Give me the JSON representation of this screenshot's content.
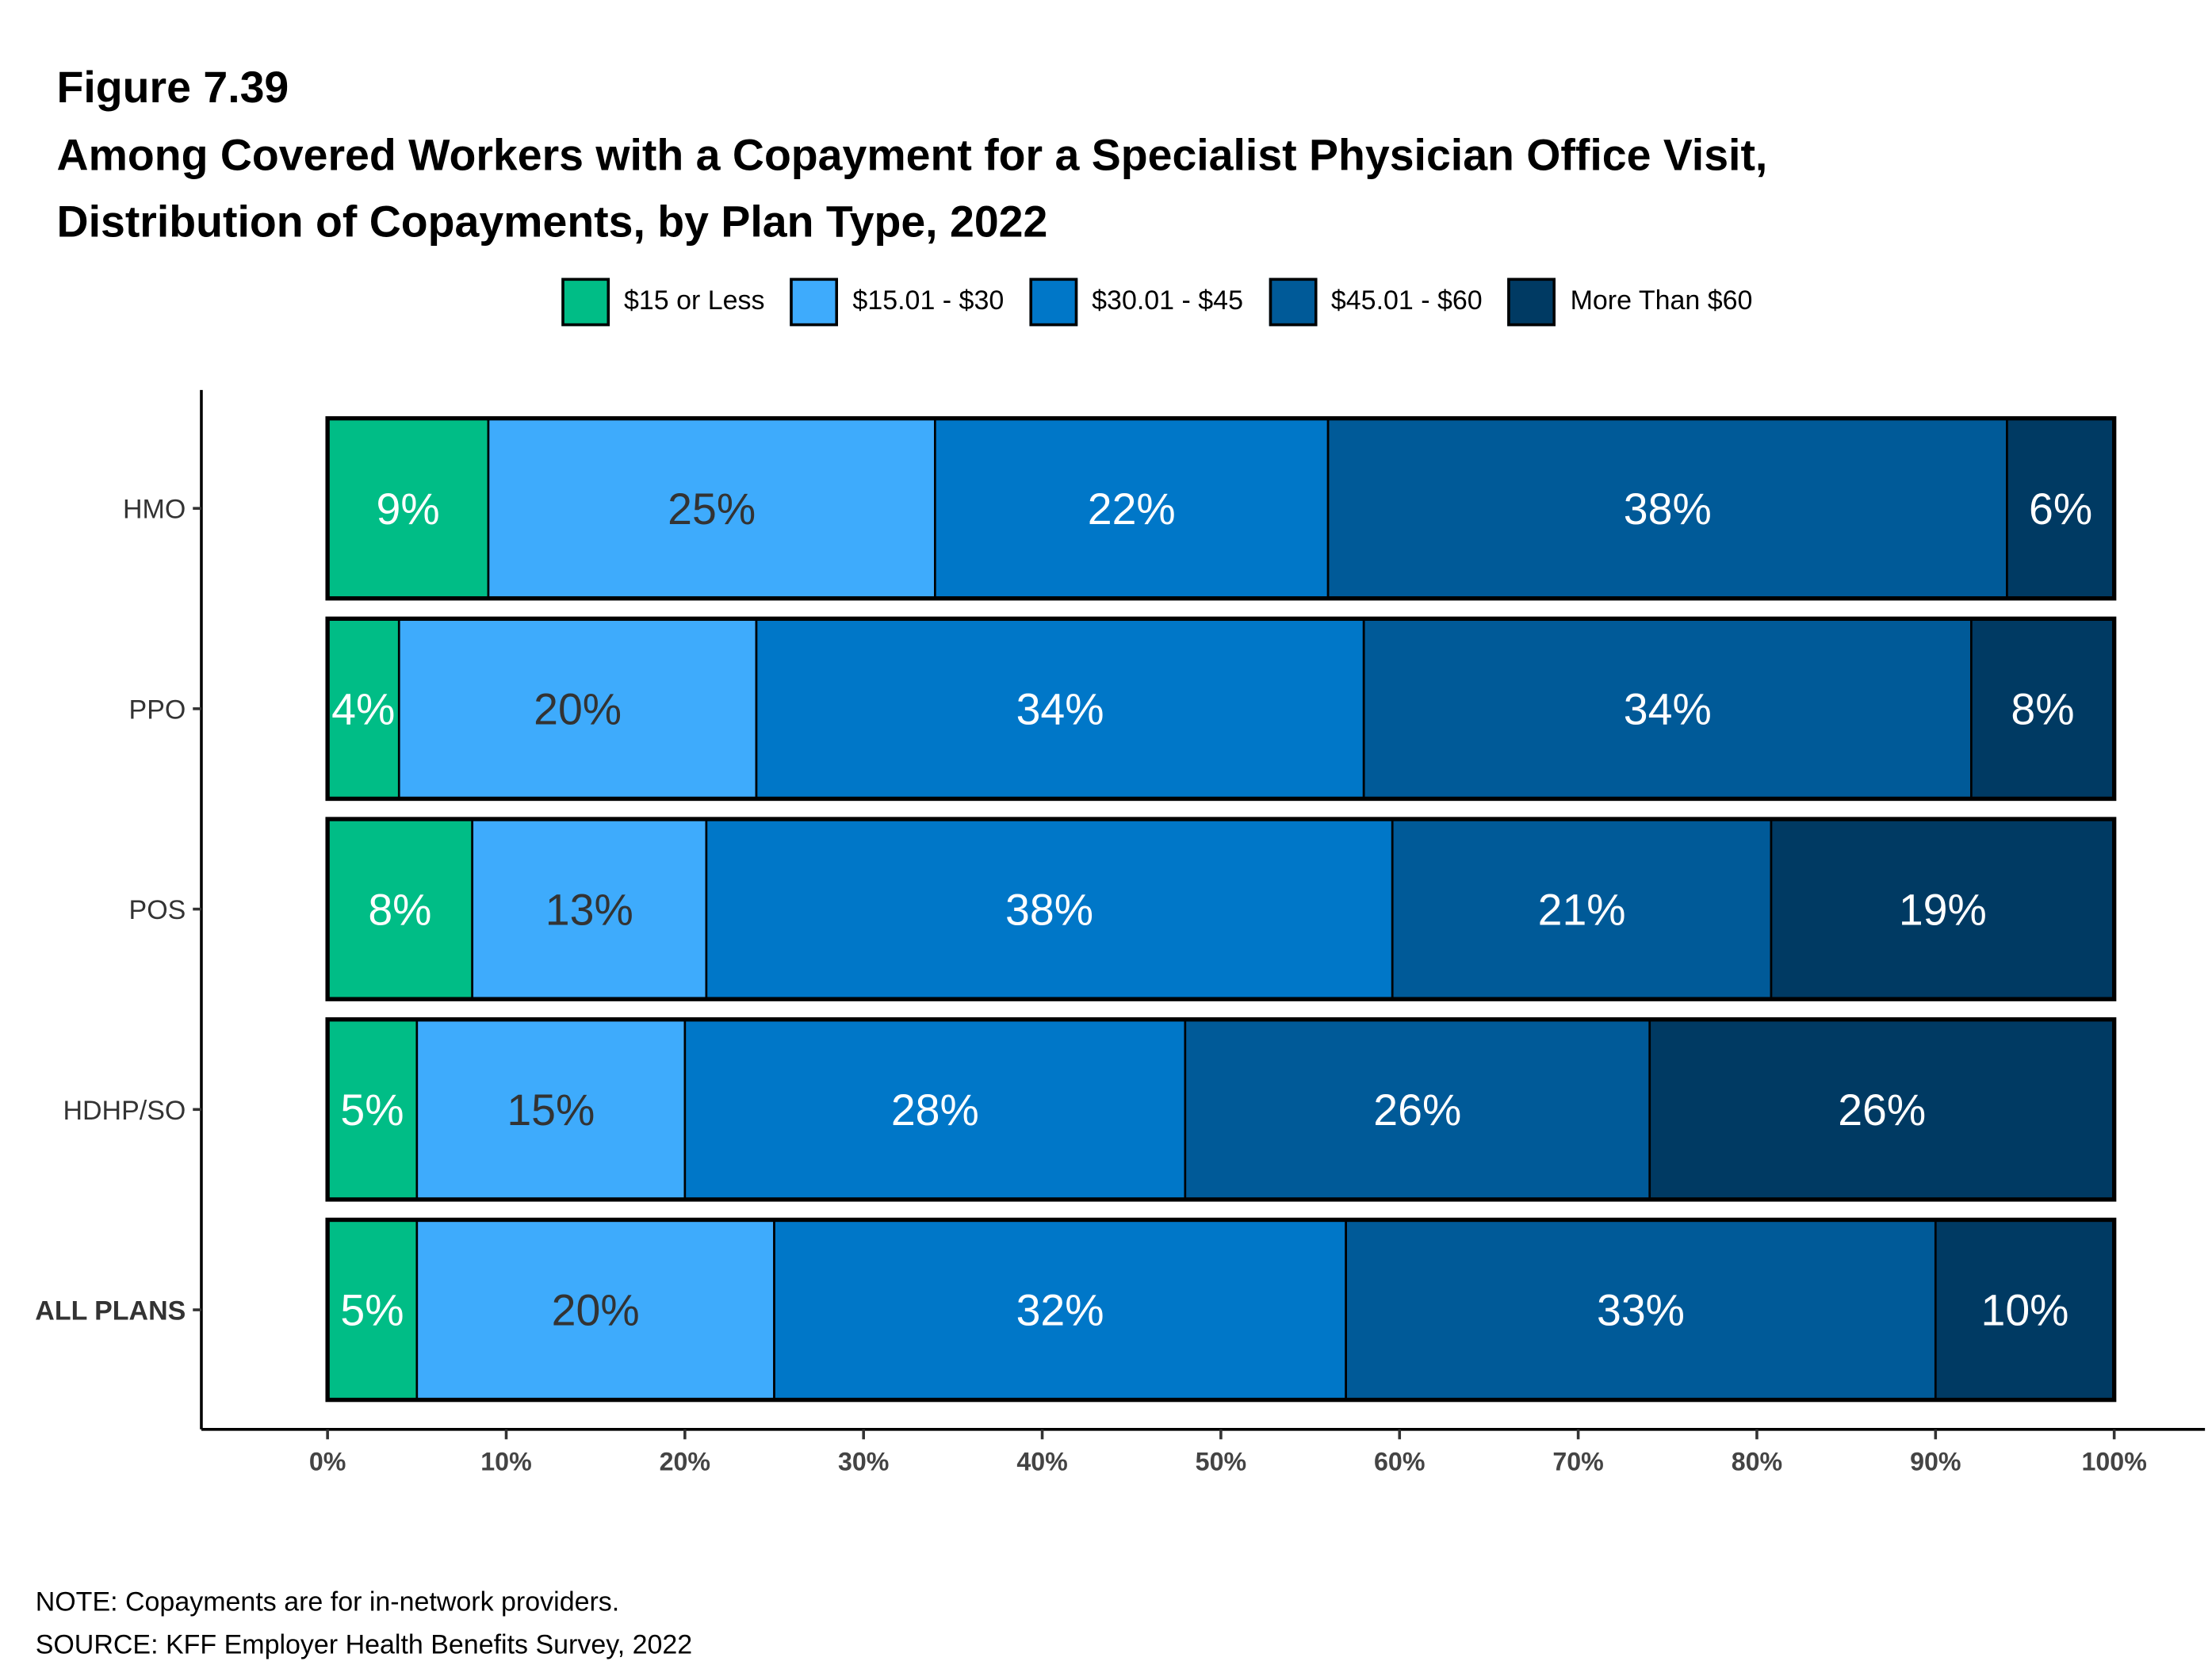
{
  "header": {
    "figure": "Figure 7.39",
    "title_line1": "Among Covered Workers with a Copayment for a Specialist Physician Office Visit,",
    "title_line2": "Distribution of Copayments, by Plan Type, 2022"
  },
  "footer": {
    "note": "NOTE: Copayments are for in-network providers.",
    "source": "SOURCE: KFF Employer Health Benefits Survey, 2022"
  },
  "chart_data": {
    "type": "bar",
    "orientation": "horizontal",
    "stacked": true,
    "title": "Among Covered Workers with a Copayment for a Specialist Physician Office Visit, Distribution of Copayments, by Plan Type, 2022",
    "categories": [
      "HMO",
      "PPO",
      "POS",
      "HDHP/SO",
      "ALL PLANS"
    ],
    "series": [
      {
        "name": "$15 or Less",
        "color": "#00BD86",
        "label_color": "#ffffff",
        "values": [
          9,
          4,
          8.1,
          5,
          5
        ],
        "labels": [
          "9%",
          "4%",
          "8%",
          "5%",
          "5%"
        ]
      },
      {
        "name": "$15.01 - $30",
        "color": "#3EABFC",
        "label_color": "#333333",
        "values": [
          25,
          20,
          13.1,
          15,
          20
        ],
        "labels": [
          "25%",
          "20%",
          "13%",
          "15%",
          "20%"
        ]
      },
      {
        "name": "$30.01 - $45",
        "color": "#0077C8",
        "label_color": "#ffffff",
        "values": [
          22,
          34,
          38.4,
          28,
          32
        ],
        "labels": [
          "22%",
          "34%",
          "38%",
          "28%",
          "32%"
        ]
      },
      {
        "name": "$45.01 - $60",
        "color": "#005A98",
        "label_color": "#ffffff",
        "values": [
          38,
          34,
          21.2,
          26,
          33
        ],
        "labels": [
          "38%",
          "34%",
          "21%",
          "26%",
          "33%"
        ]
      },
      {
        "name": "More Than $60",
        "color": "#003A63",
        "label_color": "#ffffff",
        "values": [
          6,
          8,
          19.2,
          26,
          10
        ],
        "labels": [
          "6%",
          "8%",
          "19%",
          "26%",
          "10%"
        ]
      }
    ],
    "xlim": [
      0,
      100
    ],
    "xticks": [
      "0%",
      "10%",
      "20%",
      "30%",
      "40%",
      "50%",
      "60%",
      "70%",
      "80%",
      "90%",
      "100%"
    ],
    "xlabel": "",
    "ylabel": "",
    "legend_position": "top",
    "grid": false
  }
}
